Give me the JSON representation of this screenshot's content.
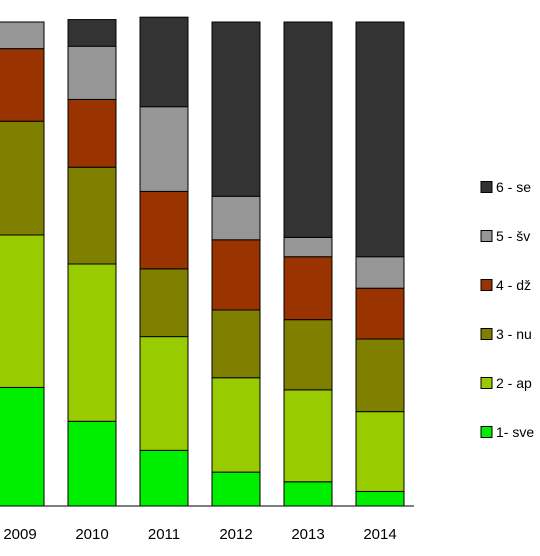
{
  "chart_data": {
    "type": "bar",
    "stacked": true,
    "normalized": true,
    "categories": [
      "2009",
      "2010",
      "2011",
      "2012",
      "2013",
      "2014"
    ],
    "ylim": [
      0,
      100
    ],
    "grid": false,
    "legend_position": "right",
    "series": [
      {
        "name": "1- sve",
        "color": "#00ee00",
        "values": [
          24.5,
          17.5,
          11.5,
          7,
          5,
          3
        ]
      },
      {
        "name": "2 - ap",
        "color": "#99cc00",
        "values": [
          31.5,
          32.5,
          23.5,
          19.5,
          19,
          16.5
        ]
      },
      {
        "name": "3 - nu",
        "color": "#808000",
        "values": [
          23.5,
          20,
          14,
          14,
          14.5,
          15
        ]
      },
      {
        "name": "4 - dž",
        "color": "#993300",
        "values": [
          15,
          14,
          16,
          14.5,
          13,
          10.5
        ]
      },
      {
        "name": "5 - šv",
        "color": "#969696",
        "values": [
          5.5,
          11,
          17.5,
          9,
          4,
          6.5
        ]
      },
      {
        "name": "6 - se",
        "color": "#333333",
        "values": [
          0,
          5.5,
          18.5,
          36,
          44.5,
          48.5
        ]
      }
    ]
  }
}
